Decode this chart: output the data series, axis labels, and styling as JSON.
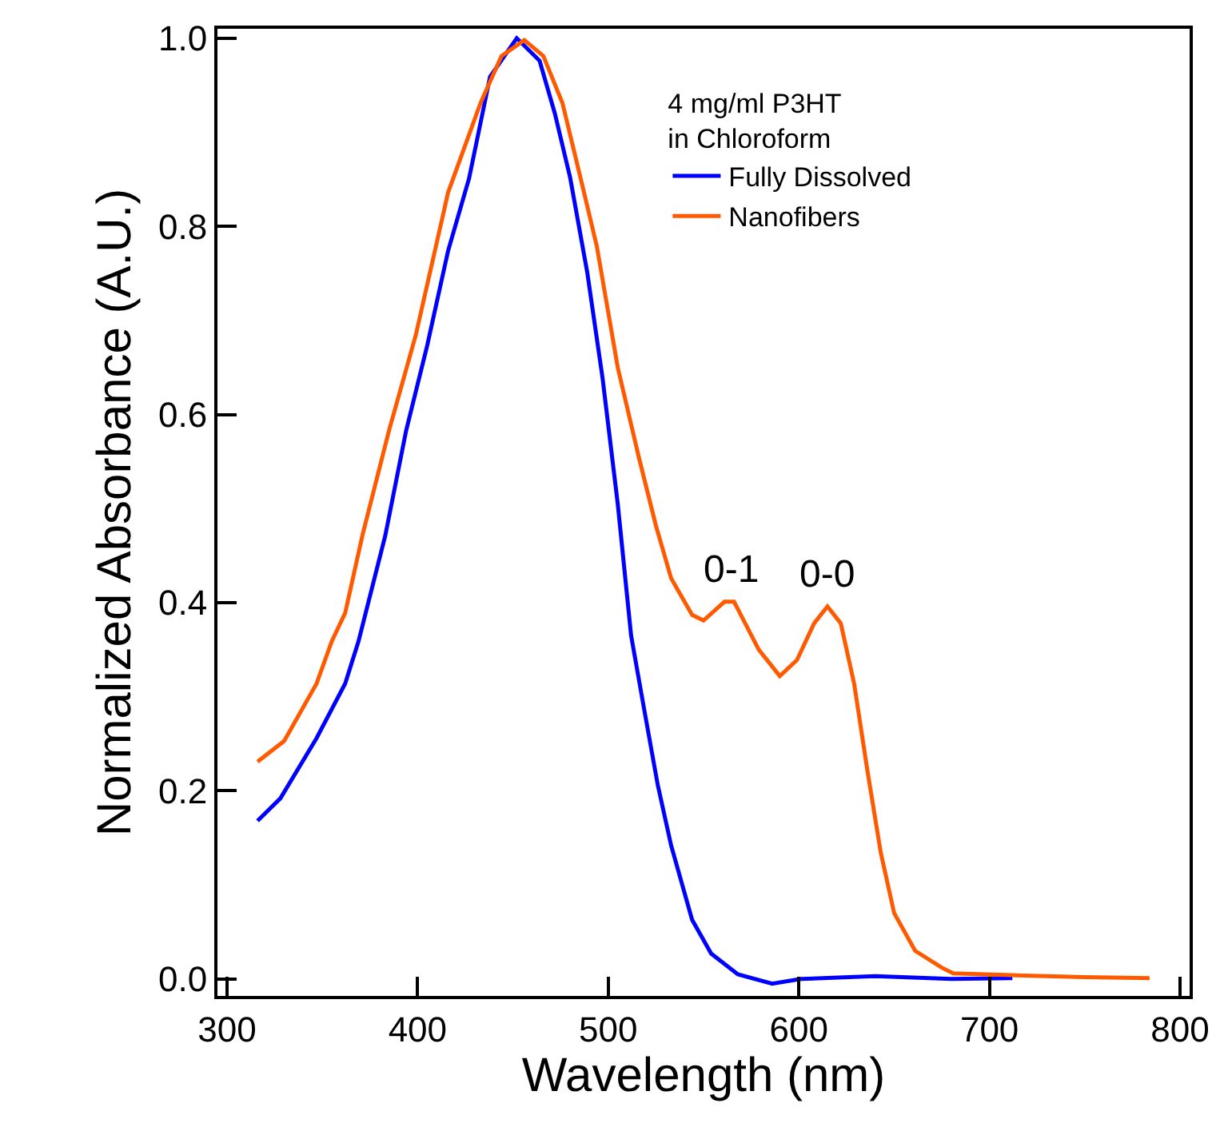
{
  "chart_data": {
    "type": "line",
    "xlabel": "Wavelength (nm)",
    "ylabel": "Normalized Absorbance (A.U.)",
    "legend_title": "4 mg/ml P3HT\nin Chloroform",
    "legend": "top right",
    "series": [
      {
        "name": "Fully Dissolved",
        "color": "#0000ff",
        "x": [
          316,
          328,
          347,
          362,
          369,
          383,
          394,
          405,
          416,
          427,
          438,
          452,
          464,
          472,
          480,
          489,
          497,
          505,
          512,
          519,
          526,
          533,
          544,
          554,
          568,
          586,
          601,
          640,
          680,
          712
        ],
        "values": [
          0.168,
          0.192,
          0.256,
          0.314,
          0.359,
          0.471,
          0.583,
          0.673,
          0.774,
          0.851,
          0.959,
          1.0,
          0.976,
          0.92,
          0.852,
          0.751,
          0.639,
          0.505,
          0.365,
          0.285,
          0.206,
          0.142,
          0.063,
          0.027,
          0.005,
          -0.005,
          0.0,
          0.003,
          0.0,
          0.001
        ]
      },
      {
        "name": "Nanofibers",
        "color": "#ff5a00",
        "x": [
          316,
          330,
          347,
          355,
          362,
          371,
          385,
          399,
          416,
          433,
          444,
          456,
          466,
          476,
          486,
          494,
          505,
          516,
          525,
          533,
          544,
          550,
          561,
          566,
          579,
          590,
          599,
          608,
          615,
          622,
          629,
          636,
          643,
          650,
          661,
          675,
          681,
          712,
          750,
          784
        ],
        "values": [
          0.231,
          0.253,
          0.314,
          0.359,
          0.389,
          0.471,
          0.583,
          0.684,
          0.836,
          0.931,
          0.981,
          0.998,
          0.981,
          0.931,
          0.847,
          0.779,
          0.65,
          0.555,
          0.482,
          0.426,
          0.387,
          0.381,
          0.401,
          0.401,
          0.35,
          0.322,
          0.339,
          0.378,
          0.396,
          0.378,
          0.314,
          0.221,
          0.134,
          0.07,
          0.03,
          0.012,
          0.006,
          0.004,
          0.002,
          0.001
        ]
      }
    ],
    "annotations": [
      {
        "text": "0-1",
        "x": 565,
        "y": 0.401
      },
      {
        "text": "0-0",
        "x": 615,
        "y": 0.396
      }
    ],
    "xlim": [
      295,
      805
    ],
    "xticks": [
      300,
      400,
      500,
      600,
      700,
      800
    ],
    "ylim": [
      -0.018,
      1.01
    ],
    "yticks": [
      {
        "value": 0,
        "label": "0.0"
      },
      {
        "value": 0.2,
        "label": "0.2"
      },
      {
        "value": 0.4,
        "label": "0.4"
      },
      {
        "value": 0.6,
        "label": "0.6"
      },
      {
        "value": 0.8,
        "label": "0.8"
      },
      {
        "value": 1,
        "label": "1.0"
      }
    ],
    "marker": "none",
    "line_style": "solid"
  }
}
